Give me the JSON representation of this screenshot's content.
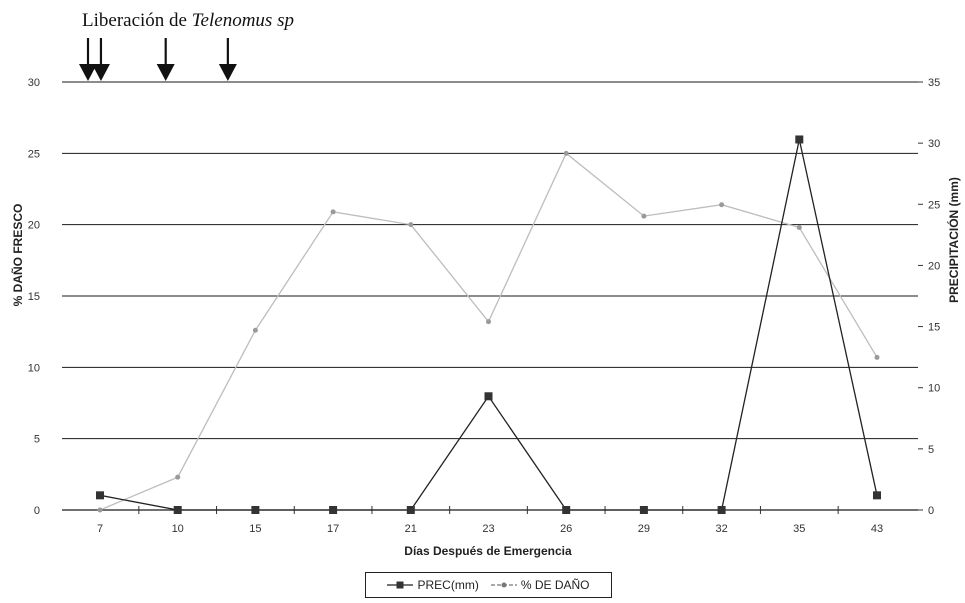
{
  "header": {
    "release_prefix": "Liberación de ",
    "release_species": "Telenomus sp"
  },
  "chart_data": {
    "type": "line",
    "title": "Liberación de Telenomus sp",
    "xlabel": "Días Después de Emergencia",
    "ylabel": "% DAÑO FRESCO",
    "y2label": "PRECIPITACIÓN (mm)",
    "categories": [
      "7",
      "10",
      "15",
      "17",
      "21",
      "23",
      "26",
      "29",
      "32",
      "35",
      "43"
    ],
    "ylim": [
      0,
      30
    ],
    "y2lim": [
      0,
      35
    ],
    "yticks": [
      0,
      5,
      10,
      15,
      20,
      25,
      30
    ],
    "y2ticks": [
      0,
      5,
      10,
      15,
      20,
      25,
      30,
      35
    ],
    "grid": true,
    "legend_position": "bottom",
    "release_arrows_at": [
      7,
      7.5,
      10,
      14
    ],
    "series": [
      {
        "name": "PREC(mm)",
        "axis": "right",
        "color": "#222222",
        "marker": "square",
        "values": [
          1.2,
          0,
          0,
          0,
          0,
          9.3,
          0,
          0,
          0,
          30.3,
          1.2
        ]
      },
      {
        "name": "% DE DAÑO",
        "axis": "left",
        "color": "#bdbdbd",
        "marker": "circle",
        "values": [
          0,
          2.3,
          12.6,
          20.9,
          20.0,
          13.2,
          25.0,
          20.6,
          21.4,
          19.8,
          10.7
        ]
      }
    ]
  }
}
